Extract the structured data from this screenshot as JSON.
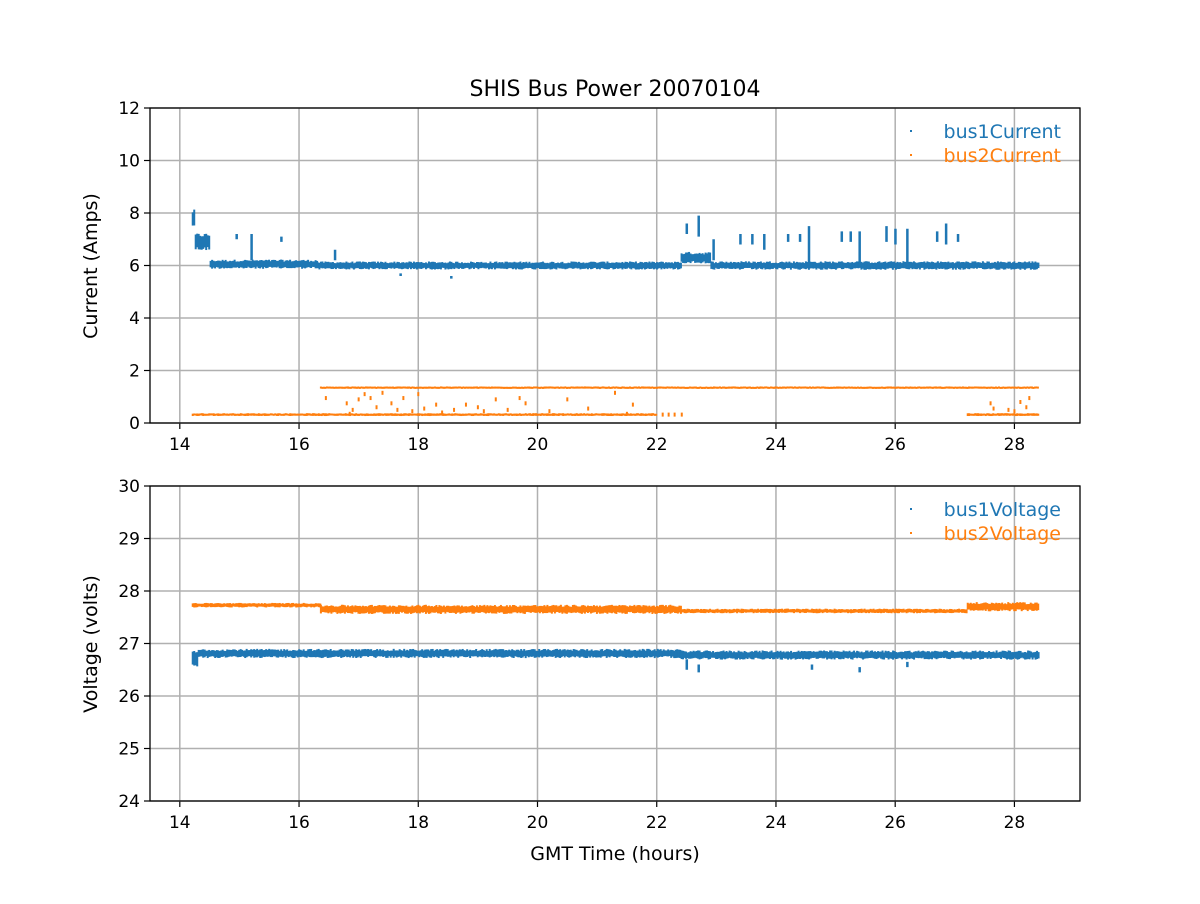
{
  "title": "SHIS Bus Power 20070104",
  "chart_data": [
    {
      "type": "scatter",
      "title": "SHIS Bus Power 20070104",
      "xlabel": "",
      "ylabel": "Current (Amps)",
      "xlim": [
        13.5,
        29.1
      ],
      "ylim": [
        0,
        12
      ],
      "xticks": [
        14,
        16,
        18,
        20,
        22,
        24,
        26,
        28
      ],
      "yticks": [
        0,
        2,
        4,
        6,
        8,
        10,
        12
      ],
      "grid": true,
      "legend": "top-right",
      "series": [
        {
          "name": "bus1Current",
          "color": "#1f77b4",
          "bands": [
            {
              "x": [
                14.2,
                14.25
              ],
              "y": 7.8,
              "spread": 0.3
            },
            {
              "x": [
                14.25,
                14.5
              ],
              "y": 6.9,
              "spread": 0.3
            },
            {
              "x": [
                14.5,
                16.3
              ],
              "y": 6.05,
              "spread": 0.16
            },
            {
              "x": [
                16.3,
                22.4
              ],
              "y": 6.0,
              "spread": 0.14
            },
            {
              "x": [
                22.4,
                22.9
              ],
              "y": 6.3,
              "spread": 0.2
            },
            {
              "x": [
                22.9,
                28.4
              ],
              "y": 6.0,
              "spread": 0.15
            }
          ],
          "spikes": [
            [
              14.95,
              7.0,
              7.2
            ],
            [
              15.2,
              6.2,
              7.2
            ],
            [
              15.7,
              6.9,
              7.1
            ],
            [
              22.5,
              7.2,
              7.6
            ],
            [
              22.7,
              7.1,
              7.9
            ],
            [
              22.95,
              6.2,
              7.0
            ],
            [
              23.4,
              6.8,
              7.2
            ],
            [
              23.6,
              6.8,
              7.2
            ],
            [
              23.8,
              6.6,
              7.2
            ],
            [
              24.2,
              6.9,
              7.2
            ],
            [
              24.4,
              6.9,
              7.2
            ],
            [
              24.55,
              6.0,
              7.5
            ],
            [
              25.1,
              6.9,
              7.3
            ],
            [
              25.25,
              6.9,
              7.3
            ],
            [
              25.4,
              6.0,
              7.3
            ],
            [
              25.85,
              6.9,
              7.5
            ],
            [
              26.0,
              6.8,
              7.4
            ],
            [
              26.2,
              6.1,
              7.4
            ],
            [
              26.7,
              6.9,
              7.3
            ],
            [
              26.85,
              6.8,
              7.6
            ],
            [
              27.05,
              6.9,
              7.2
            ],
            [
              16.6,
              6.2,
              6.6
            ],
            [
              17.7,
              5.6,
              5.7
            ],
            [
              18.55,
              5.5,
              5.6
            ]
          ]
        },
        {
          "name": "bus2Current",
          "color": "#ff7f0e",
          "bands": [
            {
              "x": [
                14.2,
                22.0
              ],
              "y": 0.32,
              "spread": 0.05
            },
            {
              "x": [
                16.35,
                28.4
              ],
              "y": 1.35,
              "spread": 0.04
            },
            {
              "x": [
                27.2,
                28.4
              ],
              "y": 0.32,
              "spread": 0.05
            }
          ],
          "points": [
            [
              22.1,
              0.32
            ],
            [
              22.2,
              0.32
            ],
            [
              22.3,
              0.32
            ],
            [
              22.42,
              0.32
            ],
            [
              16.45,
              0.95
            ],
            [
              16.8,
              0.75
            ],
            [
              16.85,
              0.35
            ],
            [
              16.9,
              0.5
            ],
            [
              17.0,
              0.9
            ],
            [
              17.1,
              1.1
            ],
            [
              17.2,
              0.95
            ],
            [
              17.3,
              0.6
            ],
            [
              17.4,
              1.15
            ],
            [
              17.55,
              0.75
            ],
            [
              17.65,
              0.5
            ],
            [
              17.75,
              0.95
            ],
            [
              17.9,
              0.45
            ],
            [
              18.0,
              1.1
            ],
            [
              18.1,
              0.55
            ],
            [
              18.3,
              0.7
            ],
            [
              18.4,
              0.4
            ],
            [
              18.6,
              0.5
            ],
            [
              18.8,
              0.7
            ],
            [
              19.0,
              0.6
            ],
            [
              19.1,
              0.45
            ],
            [
              19.3,
              0.9
            ],
            [
              19.5,
              0.5
            ],
            [
              19.7,
              0.95
            ],
            [
              19.8,
              0.75
            ],
            [
              20.2,
              0.45
            ],
            [
              20.5,
              0.9
            ],
            [
              20.85,
              0.55
            ],
            [
              21.3,
              1.15
            ],
            [
              21.6,
              0.7
            ],
            [
              21.5,
              0.35
            ],
            [
              27.6,
              0.75
            ],
            [
              27.65,
              0.55
            ],
            [
              27.9,
              0.5
            ],
            [
              28.0,
              0.45
            ],
            [
              28.1,
              0.8
            ],
            [
              28.2,
              0.6
            ],
            [
              28.25,
              0.95
            ]
          ]
        }
      ]
    },
    {
      "type": "scatter",
      "xlabel": "GMT Time (hours)",
      "ylabel": "Voltage (volts)",
      "xlim": [
        13.5,
        29.1
      ],
      "ylim": [
        24,
        30
      ],
      "xticks": [
        14,
        16,
        18,
        20,
        22,
        24,
        26,
        28
      ],
      "yticks": [
        24,
        25,
        26,
        27,
        28,
        29,
        30
      ],
      "grid": true,
      "legend": "top-right",
      "series": [
        {
          "name": "bus1Voltage",
          "color": "#1f77b4",
          "bands": [
            {
              "x": [
                14.2,
                14.3
              ],
              "y": 26.7,
              "spread": 0.15
            },
            {
              "x": [
                14.3,
                22.4
              ],
              "y": 26.81,
              "spread": 0.08
            },
            {
              "x": [
                22.4,
                28.4
              ],
              "y": 26.78,
              "spread": 0.08
            }
          ],
          "spikes": [
            [
              22.5,
              26.5,
              26.7
            ],
            [
              22.7,
              26.45,
              26.6
            ],
            [
              24.6,
              26.5,
              26.6
            ],
            [
              25.4,
              26.45,
              26.55
            ],
            [
              26.2,
              26.55,
              26.65
            ]
          ]
        },
        {
          "name": "bus2Voltage",
          "color": "#ff7f0e",
          "bands": [
            {
              "x": [
                14.2,
                16.35
              ],
              "y": 27.73,
              "spread": 0.04
            },
            {
              "x": [
                16.35,
                22.4
              ],
              "y": 27.65,
              "spread": 0.08
            },
            {
              "x": [
                22.4,
                27.2
              ],
              "y": 27.62,
              "spread": 0.04
            },
            {
              "x": [
                27.2,
                28.4
              ],
              "y": 27.7,
              "spread": 0.08
            }
          ]
        }
      ]
    }
  ]
}
